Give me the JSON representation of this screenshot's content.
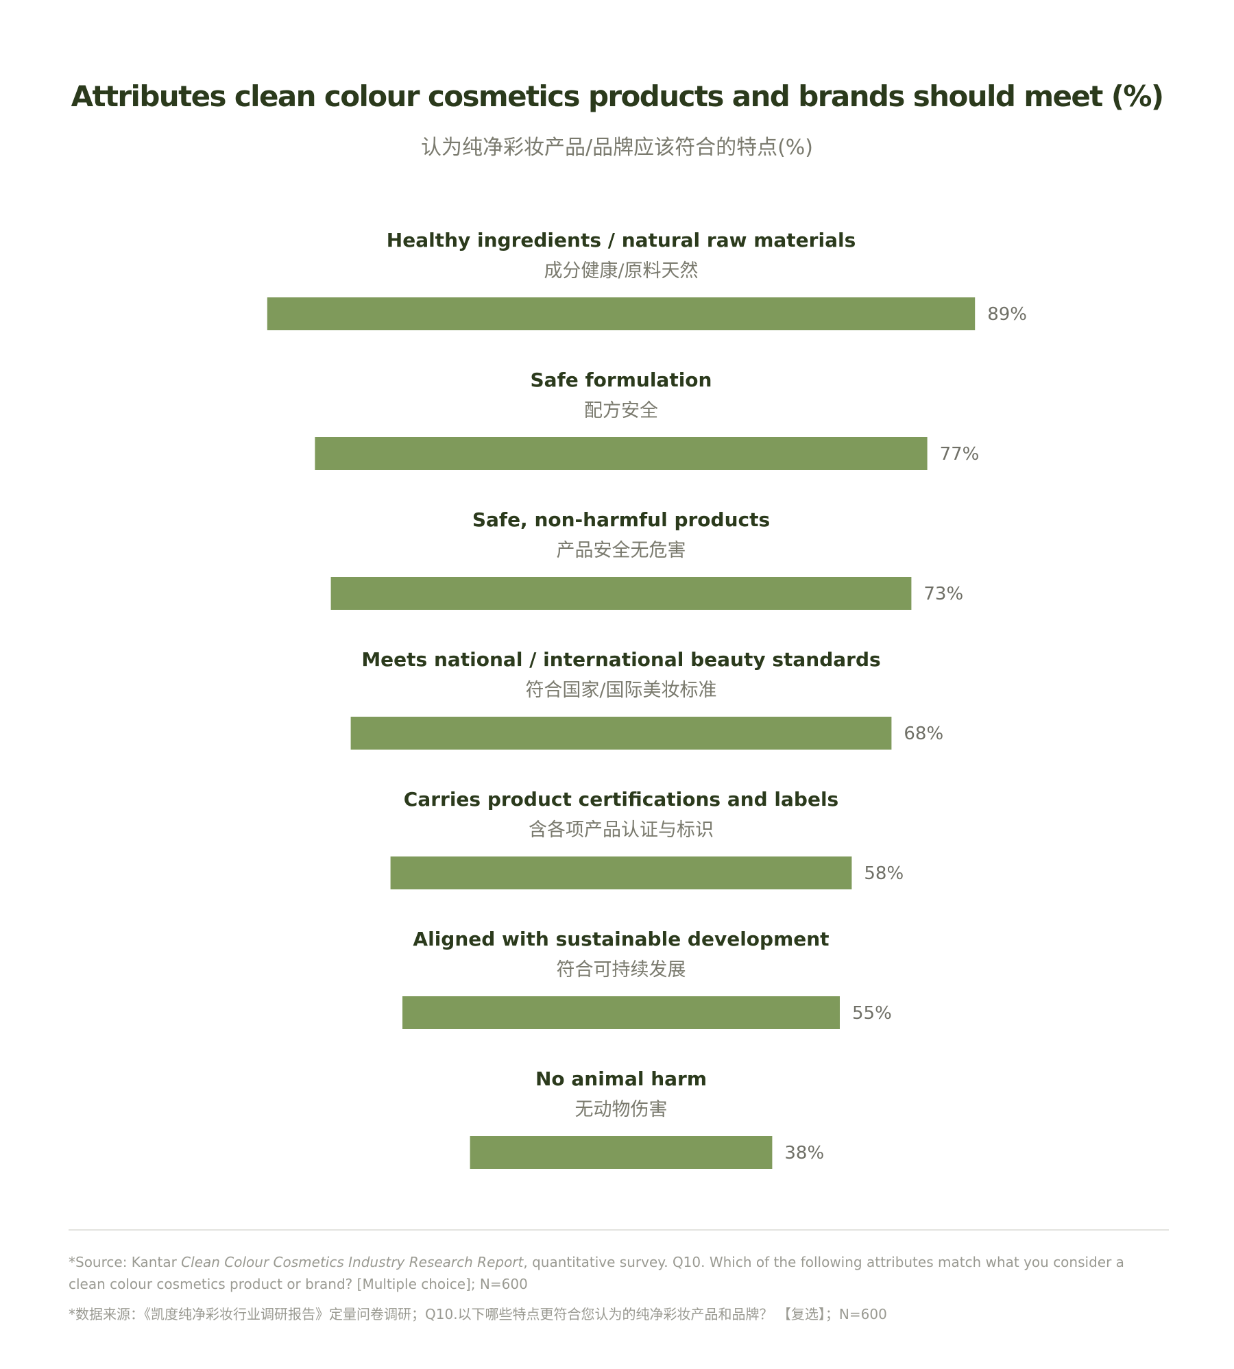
{
  "header": {
    "title": "Attributes clean colour cosmetics products and brands should meet (%)",
    "subtitle": "认为纯净彩妆产品/品牌应该符合的特点(%)"
  },
  "chart_data": {
    "type": "bar",
    "orientation": "horizontal",
    "title": "Attributes clean colour cosmetics products and brands should meet (%)",
    "subtitle": "认为纯净彩妆产品/品牌应该符合的特点(%)",
    "categories": [
      "Healthy ingredients / natural raw materials",
      "Safe formulation",
      "Safe, non-harmful products",
      "Meets national / international beauty standards",
      "Carries product certifications and labels",
      "Aligned with sustainable development",
      "No animal harm"
    ],
    "categories_zh": [
      "成分健康/原料天然",
      "配方安全",
      "产品安全无危害",
      "符合国家/国际美妆标准",
      "含各项产品认证与标识",
      "符合可持续发展",
      "无动物伤害"
    ],
    "values": [
      89,
      77,
      73,
      68,
      58,
      55,
      38
    ],
    "value_labels": [
      "89%",
      "77%",
      "73%",
      "68%",
      "58%",
      "55%",
      "38%"
    ],
    "xlim": [
      0,
      100
    ],
    "bar_color": "#7f9a5b",
    "grid": false,
    "legend": "none",
    "bar_alignment": "centered"
  },
  "footer": {
    "note_en_prefix": "*Source: Kantar ",
    "note_en_italic": "Clean Colour Cosmetics Industry Research Report",
    "note_en_suffix": ", quantitative survey. Q10. Which of the following attributes match what you consider a clean colour cosmetics product or brand? [Multiple choice]; N=600",
    "note_zh": "*数据来源：《凯度纯净彩妆行业调研报告》定量问卷调研；Q10.以下哪些特点更符合您认为的纯净彩妆产品和品牌？ 【复选】；N=600"
  }
}
